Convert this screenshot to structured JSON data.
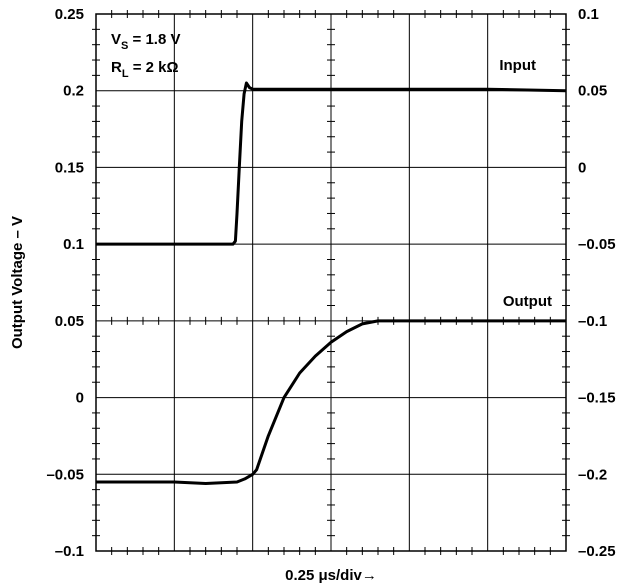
{
  "chart_data": {
    "type": "line",
    "title": "",
    "xlabel": "0.25 μs/div→",
    "ylabel": "Output Voltage – V",
    "x_divisions": 6,
    "grid": true,
    "y_left": {
      "range": [
        -0.1,
        0.25
      ],
      "ticks": [
        "0.25",
        "0.2",
        "0.15",
        "0.1",
        "0.05",
        "0",
        "–0.05",
        "–0.1"
      ]
    },
    "y_right": {
      "range": [
        -0.25,
        0.1
      ],
      "ticks": [
        "0.1",
        "0.05",
        "0",
        "–0.05",
        "–0.1",
        "–0.15",
        "–0.2",
        "–0.25"
      ]
    },
    "annotations": {
      "vs_prefix": "V",
      "vs_sub": "S",
      "vs_value": " = 1.8 V",
      "rl_prefix": "R",
      "rl_sub": "L",
      "rl_value": " = 2 kΩ"
    },
    "series": [
      {
        "name": "Input",
        "axis": "left",
        "x": [
          0,
          0.5,
          1.0,
          1.5,
          1.75,
          1.78,
          1.8,
          1.83,
          1.86,
          1.89,
          1.92,
          1.96,
          2.0,
          2.1,
          3.0,
          4.0,
          5.0,
          6.0
        ],
        "y": [
          0.1,
          0.1,
          0.1,
          0.1,
          0.1,
          0.102,
          0.12,
          0.15,
          0.18,
          0.198,
          0.205,
          0.202,
          0.201,
          0.201,
          0.201,
          0.201,
          0.201,
          0.2
        ]
      },
      {
        "name": "Output",
        "axis": "left",
        "x": [
          0,
          0.5,
          1.0,
          1.4,
          1.8,
          1.9,
          2.0,
          2.05,
          2.2,
          2.4,
          2.6,
          2.8,
          3.0,
          3.2,
          3.4,
          3.6,
          3.8,
          4.0,
          4.5,
          5.0,
          5.5,
          6.0
        ],
        "y": [
          -0.055,
          -0.055,
          -0.055,
          -0.056,
          -0.055,
          -0.053,
          -0.05,
          -0.047,
          -0.025,
          0.0,
          0.016,
          0.027,
          0.036,
          0.043,
          0.048,
          0.05,
          0.05,
          0.05,
          0.05,
          0.05,
          0.05,
          0.05
        ]
      }
    ]
  }
}
